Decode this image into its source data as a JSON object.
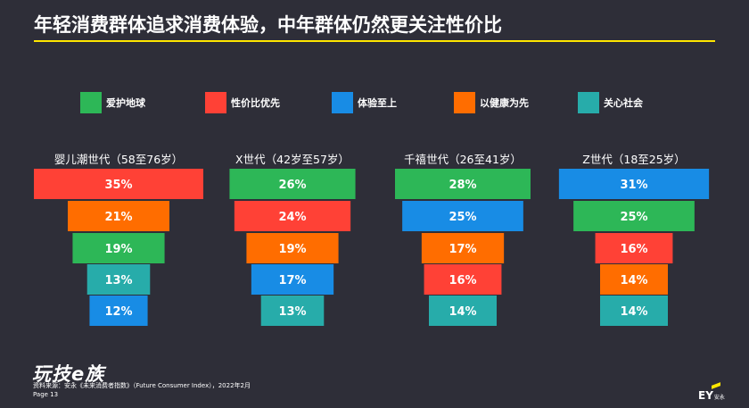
{
  "title": "年轻消费群体追求消费体验，中年群体仍然更关注性价比",
  "colors": {
    "background": "#2e2e38",
    "accent": "#ffe600",
    "爱护地球": "#2db757",
    "性价比优先": "#ff4136",
    "体验至上": "#188ce5",
    "以健康为先": "#ff6d00",
    "关心社会": "#27acaa"
  },
  "chart_data": {
    "type": "bar",
    "legend": [
      "爱护地球",
      "性价比优先",
      "体验至上",
      "以健康为先",
      "关心社会"
    ],
    "legend_position": "top",
    "groups": [
      {
        "name": "婴儿潮世代（58至76岁）",
        "segments": [
          {
            "category": "性价比优先",
            "value": 35,
            "label": "35%"
          },
          {
            "category": "以健康为先",
            "value": 21,
            "label": "21%"
          },
          {
            "category": "爱护地球",
            "value": 19,
            "label": "19%"
          },
          {
            "category": "关心社会",
            "value": 13,
            "label": "13%"
          },
          {
            "category": "体验至上",
            "value": 12,
            "label": "12%"
          }
        ]
      },
      {
        "name": "X世代（42岁至57岁）",
        "segments": [
          {
            "category": "爱护地球",
            "value": 26,
            "label": "26%"
          },
          {
            "category": "性价比优先",
            "value": 24,
            "label": "24%"
          },
          {
            "category": "以健康为先",
            "value": 19,
            "label": "19%"
          },
          {
            "category": "体验至上",
            "value": 17,
            "label": "17%"
          },
          {
            "category": "关心社会",
            "value": 13,
            "label": "13%"
          }
        ]
      },
      {
        "name": "千禧世代（26至41岁）",
        "segments": [
          {
            "category": "爱护地球",
            "value": 28,
            "label": "28%"
          },
          {
            "category": "体验至上",
            "value": 25,
            "label": "25%"
          },
          {
            "category": "以健康为先",
            "value": 17,
            "label": "17%"
          },
          {
            "category": "性价比优先",
            "value": 16,
            "label": "16%"
          },
          {
            "category": "关心社会",
            "value": 14,
            "label": "14%"
          }
        ]
      },
      {
        "name": "Z世代（18至25岁）",
        "segments": [
          {
            "category": "体验至上",
            "value": 31,
            "label": "31%"
          },
          {
            "category": "爱护地球",
            "value": 25,
            "label": "25%"
          },
          {
            "category": "性价比优先",
            "value": 16,
            "label": "16%"
          },
          {
            "category": "以健康为先",
            "value": 14,
            "label": "14%"
          },
          {
            "category": "关心社会",
            "value": 14,
            "label": "14%"
          }
        ]
      }
    ]
  },
  "footer": {
    "logo_text": "玩技e族",
    "source": "资料来源：安永《未来消费者指数》（Future Consumer Index），2022年2月",
    "page": "Page 13",
    "ey_logo": "EY",
    "ey_logo_cn": "安永"
  }
}
